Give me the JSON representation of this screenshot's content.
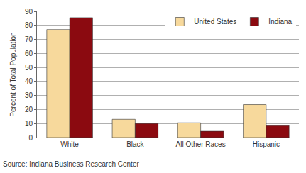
{
  "chart_data": {
    "type": "bar",
    "categories": [
      "White",
      "Black",
      "All Other Races",
      "Hispanic"
    ],
    "series": [
      {
        "name": "United States",
        "color": "#f7d99c",
        "values": [
          77,
          13,
          10.5,
          23.5
        ]
      },
      {
        "name": "Indiana",
        "color": "#8b0a10",
        "values": [
          85.5,
          10,
          4.5,
          8.5
        ]
      }
    ],
    "y_label": "Percent of Total Population",
    "ylim": [
      0,
      90
    ],
    "yticks": [
      0,
      10,
      20,
      30,
      40,
      50,
      60,
      70,
      80,
      90
    ],
    "grid": true,
    "legend": "top right",
    "annotations": [
      "Source: Indiana Business Research Center"
    ]
  }
}
